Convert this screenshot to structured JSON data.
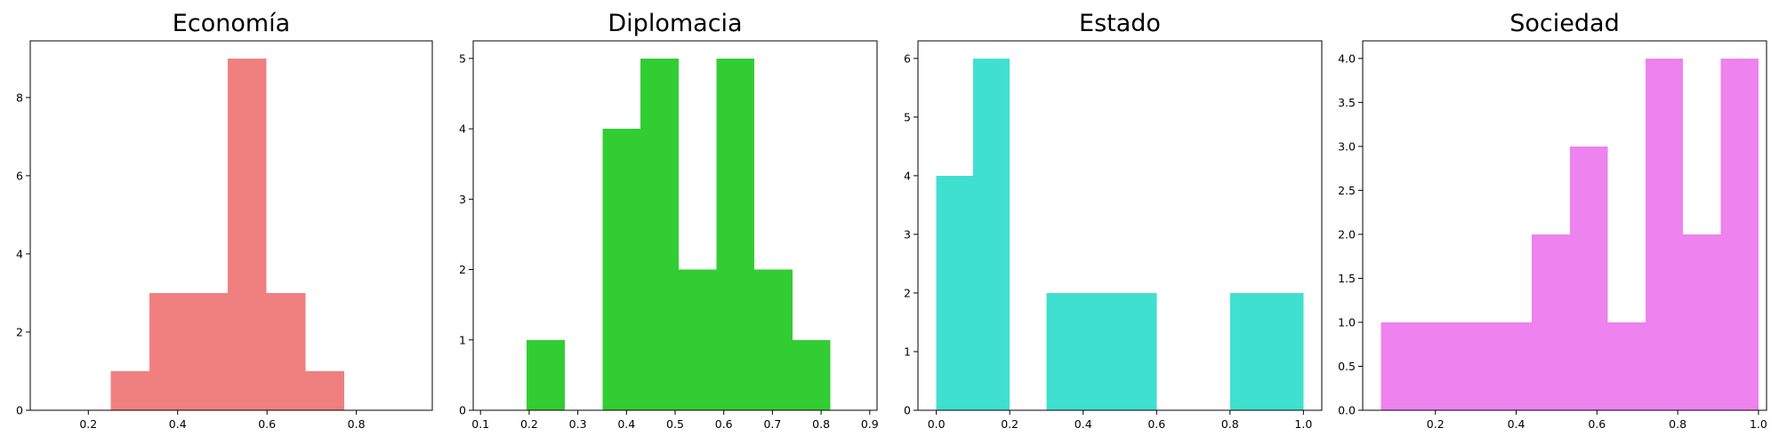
{
  "chart_data": [
    {
      "type": "histogram",
      "title": "Economía",
      "color": "#f08080",
      "xlim": [
        0.07,
        0.97
      ],
      "ylim": [
        0,
        9.45
      ],
      "xticks": [
        0.2,
        0.4,
        0.6,
        0.8
      ],
      "xtick_labels": [
        "0.2",
        "0.4",
        "0.6",
        "0.8"
      ],
      "yticks": [
        0,
        2,
        4,
        6,
        8
      ],
      "ytick_labels": [
        "0",
        "2",
        "4",
        "6",
        "8"
      ],
      "bins": [
        {
          "x0": 0.25,
          "x1": 0.337,
          "count": 1
        },
        {
          "x0": 0.337,
          "x1": 0.425,
          "count": 3
        },
        {
          "x0": 0.425,
          "x1": 0.512,
          "count": 3
        },
        {
          "x0": 0.512,
          "x1": 0.599,
          "count": 9
        },
        {
          "x0": 0.599,
          "x1": 0.686,
          "count": 3
        },
        {
          "x0": 0.686,
          "x1": 0.773,
          "count": 1
        }
      ]
    },
    {
      "type": "histogram",
      "title": "Diplomacia",
      "color": "#32cd32",
      "xlim": [
        0.085,
        0.915
      ],
      "ylim": [
        0,
        5.25
      ],
      "xticks": [
        0.1,
        0.2,
        0.3,
        0.4,
        0.5,
        0.6,
        0.7,
        0.8,
        0.9
      ],
      "xtick_labels": [
        "0.1",
        "0.2",
        "0.3",
        "0.4",
        "0.5",
        "0.6",
        "0.7",
        "0.8",
        "0.9"
      ],
      "yticks": [
        0,
        1,
        2,
        3,
        4,
        5
      ],
      "ytick_labels": [
        "0",
        "1",
        "2",
        "3",
        "4",
        "5"
      ],
      "bins": [
        {
          "x0": 0.195,
          "x1": 0.273,
          "count": 1
        },
        {
          "x0": 0.351,
          "x1": 0.429,
          "count": 4
        },
        {
          "x0": 0.429,
          "x1": 0.507,
          "count": 5
        },
        {
          "x0": 0.507,
          "x1": 0.585,
          "count": 2
        },
        {
          "x0": 0.585,
          "x1": 0.663,
          "count": 5
        },
        {
          "x0": 0.663,
          "x1": 0.741,
          "count": 2
        },
        {
          "x0": 0.741,
          "x1": 0.819,
          "count": 1
        }
      ]
    },
    {
      "type": "histogram",
      "title": "Estado",
      "color": "#40e0d0",
      "xlim": [
        -0.05,
        1.05
      ],
      "ylim": [
        0,
        6.3
      ],
      "xticks": [
        0.0,
        0.2,
        0.4,
        0.6,
        0.8,
        1.0
      ],
      "xtick_labels": [
        "0.0",
        "0.2",
        "0.4",
        "0.6",
        "0.8",
        "1.0"
      ],
      "yticks": [
        0,
        1,
        2,
        3,
        4,
        5,
        6
      ],
      "ytick_labels": [
        "0",
        "1",
        "2",
        "3",
        "4",
        "5",
        "6"
      ],
      "bins": [
        {
          "x0": 0.0,
          "x1": 0.1,
          "count": 4
        },
        {
          "x0": 0.1,
          "x1": 0.2,
          "count": 6
        },
        {
          "x0": 0.3,
          "x1": 0.4,
          "count": 2
        },
        {
          "x0": 0.4,
          "x1": 0.5,
          "count": 2
        },
        {
          "x0": 0.5,
          "x1": 0.6,
          "count": 2
        },
        {
          "x0": 0.8,
          "x1": 0.9,
          "count": 2
        },
        {
          "x0": 0.9,
          "x1": 1.0,
          "count": 2
        }
      ]
    },
    {
      "type": "histogram",
      "title": "Sociedad",
      "color": "#ee82ee",
      "xlim": [
        0.02,
        1.02
      ],
      "ylim": [
        0,
        4.2
      ],
      "xticks": [
        0.2,
        0.4,
        0.6,
        0.8,
        1.0
      ],
      "xtick_labels": [
        "0.2",
        "0.4",
        "0.6",
        "0.8",
        "1.0"
      ],
      "yticks": [
        0,
        0.5,
        1,
        1.5,
        2,
        2.5,
        3,
        3.5,
        4
      ],
      "ytick_labels": [
        "0.0",
        "0.5",
        "1.0",
        "1.5",
        "2.0",
        "2.5",
        "3.0",
        "3.5",
        "4.0"
      ],
      "bins": [
        {
          "x0": 0.065,
          "x1": 0.159,
          "count": 1
        },
        {
          "x0": 0.159,
          "x1": 0.253,
          "count": 1
        },
        {
          "x0": 0.253,
          "x1": 0.346,
          "count": 1
        },
        {
          "x0": 0.346,
          "x1": 0.439,
          "count": 1
        },
        {
          "x0": 0.439,
          "x1": 0.533,
          "count": 2
        },
        {
          "x0": 0.533,
          "x1": 0.627,
          "count": 3
        },
        {
          "x0": 0.627,
          "x1": 0.72,
          "count": 1
        },
        {
          "x0": 0.72,
          "x1": 0.813,
          "count": 4
        },
        {
          "x0": 0.813,
          "x1": 0.907,
          "count": 2
        },
        {
          "x0": 0.907,
          "x1": 1.0,
          "count": 4
        }
      ]
    }
  ]
}
